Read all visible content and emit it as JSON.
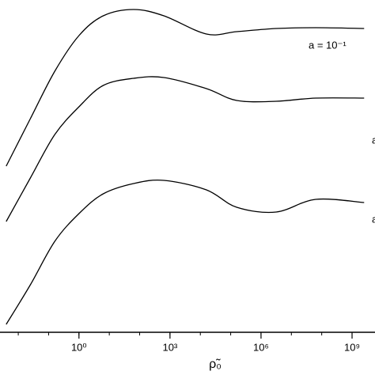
{
  "chart_data": {
    "type": "line",
    "x_label": "ρ̃₀",
    "xlog": true,
    "x": [
      0.004,
      0.025,
      0.16,
      1,
      6.3,
      63,
      630,
      15850,
      158500,
      3160000,
      63000000,
      2500000000
    ],
    "series": [
      {
        "name": "a = 10⁻¹",
        "color": "#000000",
        "values": [
          21,
          27,
          33,
          37.5,
          40,
          40.8,
          40,
          37.7,
          38,
          38.4,
          38.5,
          38.4
        ]
      },
      {
        "name": "a",
        "color": "#000000",
        "values": [
          14,
          19.5,
          25,
          28.5,
          31.2,
          32.1,
          32.2,
          30.8,
          29.3,
          29.2,
          29.6,
          29.6
        ]
      },
      {
        "name": "a",
        "color": "#000000",
        "values": [
          1,
          6,
          11.5,
          15,
          17.5,
          18.8,
          19.2,
          18,
          15.8,
          15.2,
          16.8,
          16.4
        ]
      }
    ],
    "xlim": [
      0.0025,
      5700000000
    ],
    "ylim": [
      0,
      42
    ],
    "xticks": [
      {
        "value": 1,
        "label": "10⁰"
      },
      {
        "value": 1000,
        "label": "10³"
      },
      {
        "value": 1000000,
        "label": "10⁶"
      },
      {
        "value": 1000000000,
        "label": "10⁹"
      }
    ]
  }
}
